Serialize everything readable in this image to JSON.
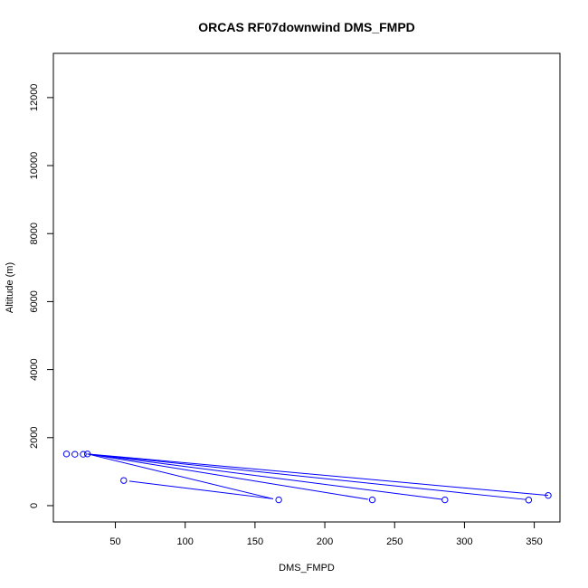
{
  "chart_data": {
    "type": "scatter",
    "title": "ORCAS RF07downwind DMS_FMPD",
    "xlabel": "DMS_FMPD",
    "ylabel": "Altitude (m)",
    "xlim": [
      5.6,
      368.4
    ],
    "ylim": [
      -480,
      13300
    ],
    "x_ticks": [
      50,
      100,
      150,
      200,
      250,
      300,
      350
    ],
    "y_ticks": [
      0,
      2000,
      4000,
      6000,
      8000,
      10000,
      12000
    ],
    "colors": {
      "series": "#0000ff",
      "axis": "#000000",
      "background": "#ffffff"
    },
    "series": [
      {
        "style": "points-and-lines",
        "points": [
          {
            "x": 15,
            "y": 1520
          },
          {
            "x": 21,
            "y": 1510
          },
          {
            "x": 27,
            "y": 1510
          },
          {
            "x": 30,
            "y": 1520
          },
          {
            "x": 360,
            "y": 300
          },
          {
            "x": 346,
            "y": 165
          },
          {
            "x": 286,
            "y": 170
          },
          {
            "x": 234,
            "y": 170
          },
          {
            "x": 167,
            "y": 170
          },
          {
            "x": 56,
            "y": 740
          }
        ],
        "lines": [
          [
            {
              "x": 30,
              "y": 1520
            },
            {
              "x": 360,
              "y": 300
            }
          ],
          [
            {
              "x": 30,
              "y": 1520
            },
            {
              "x": 344,
              "y": 180
            }
          ],
          [
            {
              "x": 30,
              "y": 1520
            },
            {
              "x": 284,
              "y": 185
            }
          ],
          [
            {
              "x": 30,
              "y": 1520
            },
            {
              "x": 231,
              "y": 185
            }
          ],
          [
            {
              "x": 30,
              "y": 1520
            },
            {
              "x": 163,
              "y": 200
            }
          ],
          [
            {
              "x": 60,
              "y": 720
            },
            {
              "x": 163,
              "y": 200
            }
          ]
        ]
      }
    ]
  }
}
